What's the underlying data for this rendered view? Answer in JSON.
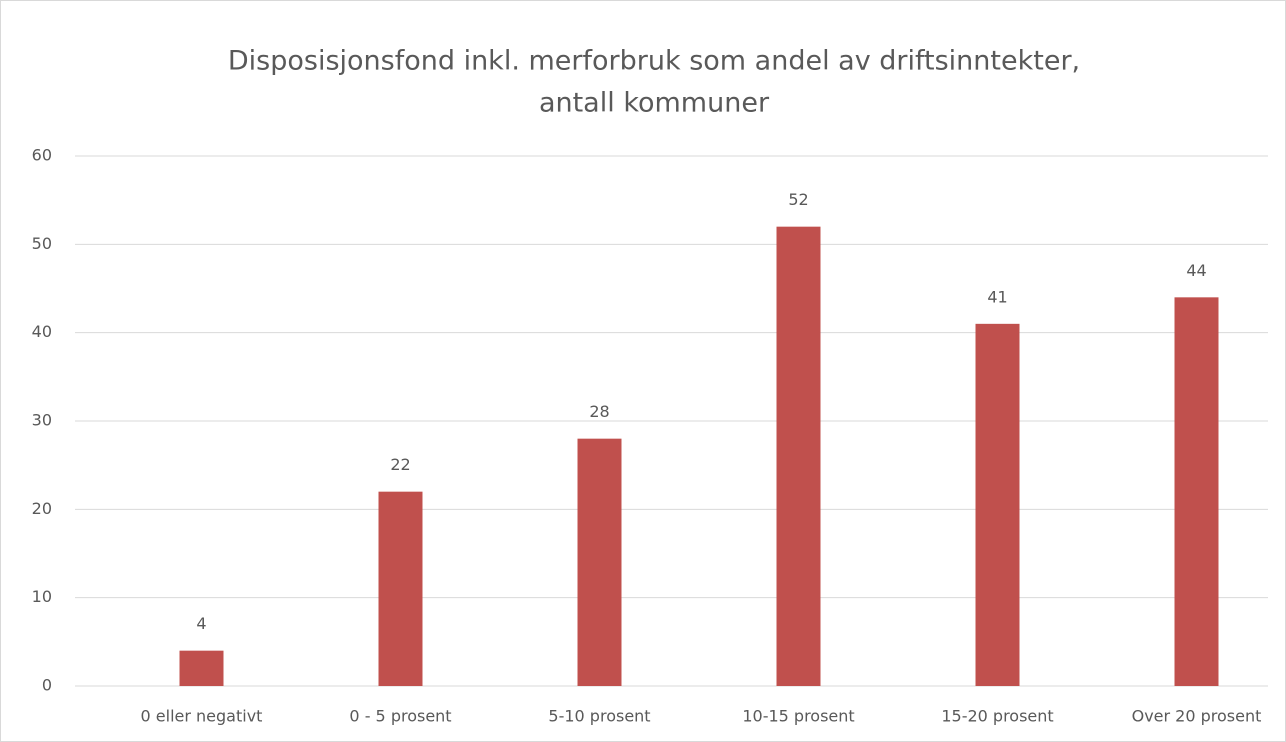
{
  "chart_data": {
    "type": "bar",
    "title": [
      "Disposisjonsfond  inkl. merforbruk  som andel av driftsinntekter,",
      "antall kommuner"
    ],
    "categories": [
      "0 eller negativt",
      "0 - 5 prosent",
      "5-10 prosent",
      "10-15 prosent",
      "15-20 prosent",
      "Over 20 prosent"
    ],
    "values": [
      4,
      22,
      28,
      52,
      41,
      44
    ],
    "color": "#c0504d",
    "ylim": [
      0,
      60
    ],
    "yticks": [
      0,
      10,
      20,
      30,
      40,
      50,
      60
    ],
    "grid": true
  }
}
